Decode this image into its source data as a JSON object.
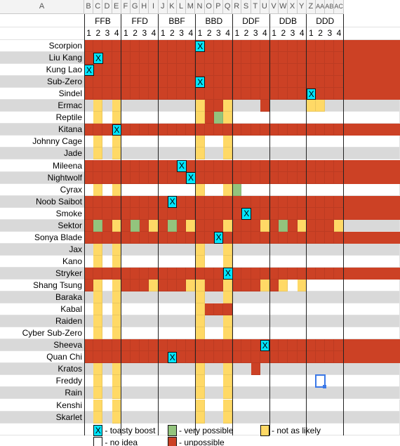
{
  "columns": [
    "A",
    "B",
    "C",
    "D",
    "E",
    "F",
    "G",
    "H",
    "I",
    "J",
    "K",
    "L",
    "M",
    "N",
    "O",
    "P",
    "Q",
    "R",
    "S",
    "T",
    "U",
    "V",
    "W",
    "X",
    "Y",
    "Z",
    "AA",
    "AB",
    "AC"
  ],
  "combos": [
    "FFB",
    "FFD",
    "BBF",
    "BBD",
    "DDF",
    "DDB",
    "DDD"
  ],
  "numbers": [
    "1",
    "2",
    "3",
    "4"
  ],
  "fighters": [
    "Scorpion",
    "Liu Kang",
    "Kung Lao",
    "Sub-Zero",
    "Sindel",
    "Ermac",
    "Reptile",
    "Kitana",
    "Johnny Cage",
    "Jade",
    "Mileena",
    "Nightwolf",
    "Cyrax",
    "Noob Saibot",
    "Smoke",
    "Sektor",
    "Sonya Blade",
    "Jax",
    "Kano",
    "Stryker",
    "Shang Tsung",
    "Baraka",
    "Kabal",
    "Raiden",
    "Cyber Sub-Zero",
    "Sheeva",
    "Quan Chi",
    "Kratos",
    "Freddy",
    "Rain",
    "Kenshi",
    "Skarlet"
  ],
  "x_mark": "X",
  "colors": {
    "red": "#cc4125",
    "yellow": "#ffd966",
    "green": "#93c47d",
    "gray": "#d9d9d9",
    "cyan": "#00e5ff"
  },
  "grid": [
    "RRRRRRRRRRRRRRRRRRRRRRRRRRRR",
    "RRRRRRRRRRRRRRRRRRRRRRRRRRRR",
    "RRRRRRRRRRRRRRRRRRRRRRRRRRRR",
    "RRRRRRRRRRRRRRRRRRRRRRRRRRRR",
    "RRRRRRRRRRRRRRRRRRRRRRRRRRRR",
    "-Y-Y--------YRRY---R----YY--",
    "-Y-Y--------YRGY------------",
    "RRRRRRRRRRRRRRRRRRRRRRRRRRRR",
    "-Y-Y--------Y--Y------------",
    "-Y-Y--------Y--Y------------",
    "RRRRRRRRRRRRRRRRRRRRRRRRRRRR",
    "RRRRRRRRRRRRRRRRRRRRRRRRRRRR",
    "-Y-Y--------Y--YG-----------",
    "RRRRRRRRRRRRRRRRRRRRRRRRRRRR",
    "RRRRRRRRRRRRRRRRRRRRRRRRRRRR",
    "RGRYRGRYRGRYRRRYRRRYRGRYRRRY",
    "RRRRRRRRRRRRRRRRRRRRRRRRRRRR",
    "-Y-Y--------Y--Y------------",
    "-Y-Y--------Y--Y------------",
    "RRRRRRRRRRRRRRRRRRRRRRRRRRRR",
    "RY-YRRRYRRRYYRRYRRRYRY-Y----",
    "-Y-Y--------Y--Y------------",
    "-Y-Y--------YRRR------------",
    "-Y-Y--------Y--Y------------",
    "-Y-Y--------Y--Y------------",
    "RRRRRRRRRRRRRRRRRRRRRRRRRRRR",
    "RRRRRRRRRRRRRRRRRRRRRRRRRRRR",
    "-Y-Y--------Y--Y--R---------",
    "-Y-Y--------Y--Y------------",
    "-Y-Y--------Y--Y------------",
    "-Y-Y--------Y--Y------------",
    "-Y-Y--------Y--Y------------"
  ],
  "x_marks": [
    [
      0,
      12
    ],
    [
      1,
      1
    ],
    [
      2,
      0
    ],
    [
      3,
      12
    ],
    [
      4,
      24
    ],
    [
      7,
      3
    ],
    [
      10,
      10
    ],
    [
      11,
      11
    ],
    [
      13,
      9
    ],
    [
      14,
      17
    ],
    [
      16,
      14
    ],
    [
      19,
      15
    ],
    [
      25,
      19
    ],
    [
      26,
      9
    ]
  ],
  "legend": {
    "toasty_label": "- toasty boost",
    "very_possible_label": "- very possible",
    "not_as_likely_label": "- not as likely",
    "no_idea_label": "- no idea",
    "unpossible_label": "- unpossible"
  }
}
